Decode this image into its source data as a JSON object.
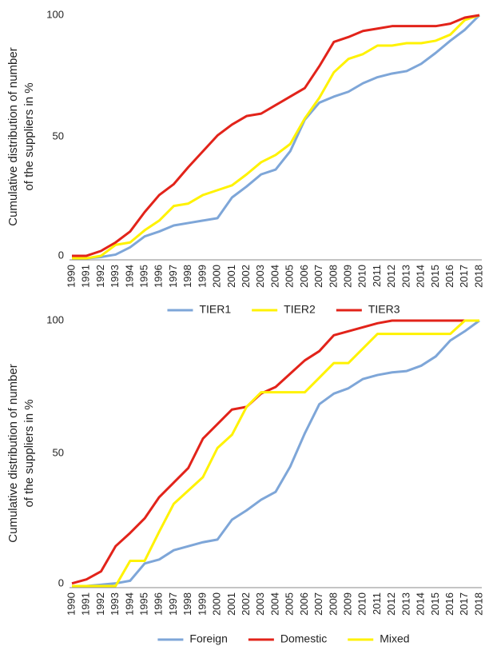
{
  "chart_data": [
    {
      "type": "line",
      "ylabel": [
        "Cumulative distribution of number",
        "of the suppliers in %"
      ],
      "categories": [
        "1990",
        "1991",
        "1992",
        "1993",
        "1994",
        "1995",
        "1996",
        "1997",
        "1998",
        "1999",
        "2000",
        "2001",
        "2002",
        "2003",
        "2004",
        "2005",
        "2006",
        "2007",
        "2008",
        "2009",
        "2010",
        "2011",
        "2012",
        "2013",
        "2014",
        "2015",
        "2016",
        "2017",
        "2018"
      ],
      "ylim": [
        0,
        100
      ],
      "yticks": [
        0,
        50,
        100
      ],
      "grid": false,
      "series": [
        {
          "name": "TIER1",
          "color": "#7ea6d8",
          "values": [
            0,
            0,
            0.5,
            1.5,
            4.5,
            9,
            11,
            13.5,
            14.5,
            15.5,
            16.5,
            25,
            29.5,
            34.5,
            36.5,
            44,
            57,
            64,
            66.5,
            68.5,
            72,
            74.5,
            76,
            77,
            80,
            84.5,
            89.5,
            94,
            100
          ]
        },
        {
          "name": "TIER2",
          "color": "#fff200",
          "values": [
            0,
            0,
            1,
            5.5,
            6.5,
            11.5,
            15.5,
            21.5,
            22.5,
            26,
            28,
            30,
            34.5,
            39.5,
            42.5,
            47,
            57.5,
            66,
            76.5,
            82,
            84,
            87.5,
            87.5,
            88.5,
            88.5,
            89.5,
            92,
            98,
            100
          ]
        },
        {
          "name": "TIER3",
          "color": "#e2231a",
          "values": [
            1,
            1,
            3,
            6.5,
            11,
            19,
            26,
            30.5,
            37.5,
            44,
            50.5,
            55,
            58.5,
            59.5,
            63,
            66.5,
            70,
            79,
            89,
            91,
            93.5,
            94.5,
            95.5,
            95.5,
            95.5,
            95.5,
            96.5,
            99,
            100
          ]
        }
      ]
    },
    {
      "type": "line",
      "ylabel": [
        "Cumulative distribution of number",
        "of the suppliers in %"
      ],
      "categories": [
        "1990",
        "1991",
        "1992",
        "1993",
        "1994",
        "1995",
        "1996",
        "1997",
        "1998",
        "1999",
        "2000",
        "2001",
        "2002",
        "2003",
        "2004",
        "2005",
        "2006",
        "2007",
        "2008",
        "2009",
        "2010",
        "2011",
        "2012",
        "2013",
        "2014",
        "2015",
        "2016",
        "2017",
        "2018"
      ],
      "ylim": [
        0,
        100
      ],
      "yticks": [
        0,
        50,
        100
      ],
      "grid": false,
      "series": [
        {
          "name": "Foreign",
          "color": "#7ea6d8",
          "values": [
            0,
            0,
            0.5,
            1,
            2,
            8.5,
            10,
            13.5,
            15,
            16.5,
            17.5,
            25,
            28.5,
            32.5,
            35.5,
            45,
            57.5,
            68.5,
            72.5,
            74.5,
            78,
            79.5,
            80.5,
            81,
            83,
            86.5,
            92.5,
            96,
            100
          ]
        },
        {
          "name": "Domestic",
          "color": "#e2231a",
          "values": [
            1,
            2.5,
            5.5,
            15,
            20,
            25.5,
            33.5,
            39,
            44.5,
            55.5,
            61,
            66.5,
            67.5,
            72.5,
            75,
            80,
            85,
            88.5,
            94.5,
            96,
            97.5,
            99,
            100,
            100,
            100,
            100,
            100,
            100,
            100
          ]
        },
        {
          "name": "Mixed",
          "color": "#fff200",
          "values": [
            0,
            0,
            0,
            0,
            9.5,
            9.5,
            20.5,
            31,
            36,
            41,
            52,
            57,
            67.5,
            73,
            73,
            73,
            73,
            78.5,
            84,
            84,
            89.5,
            95,
            95,
            95,
            95,
            95,
            95,
            100,
            100
          ]
        }
      ]
    }
  ]
}
